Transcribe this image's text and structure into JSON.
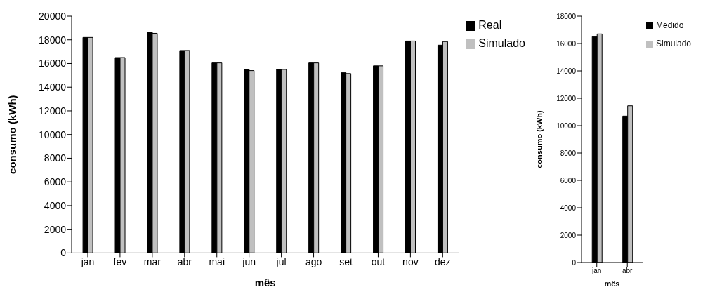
{
  "chart_data": [
    {
      "type": "bar",
      "xlabel": "mês",
      "ylabel": "consumo (kWh)",
      "categories": [
        "jan",
        "fev",
        "mar",
        "abr",
        "mai",
        "jun",
        "jul",
        "ago",
        "set",
        "out",
        "nov",
        "dez"
      ],
      "series": [
        {
          "name": "Real",
          "color": "#000000",
          "values": [
            18200,
            16500,
            18650,
            17100,
            16050,
            15500,
            15500,
            16050,
            15250,
            15800,
            17900,
            17550
          ]
        },
        {
          "name": "Simulado",
          "color": "#c0c0c0",
          "values": [
            18200,
            16500,
            18550,
            17100,
            16050,
            15400,
            15500,
            16050,
            15150,
            15800,
            17900,
            17850
          ]
        }
      ],
      "ylim": [
        0,
        20000
      ],
      "yticks": [
        0,
        2000,
        4000,
        6000,
        8000,
        10000,
        12000,
        14000,
        16000,
        18000,
        20000
      ],
      "grid": false,
      "legend": "top right"
    },
    {
      "type": "bar",
      "xlabel": "mês",
      "ylabel": "consumo (kWh)",
      "categories": [
        "jan",
        "abr"
      ],
      "series": [
        {
          "name": "Medido",
          "color": "#000000",
          "values": [
            16500,
            10700
          ]
        },
        {
          "name": "Simulado",
          "color": "#c0c0c0",
          "values": [
            16700,
            11450
          ]
        }
      ],
      "ylim": [
        0,
        18000
      ],
      "yticks": [
        0,
        2000,
        4000,
        6000,
        8000,
        10000,
        12000,
        14000,
        16000,
        18000
      ],
      "grid": false,
      "legend": "top right"
    }
  ]
}
